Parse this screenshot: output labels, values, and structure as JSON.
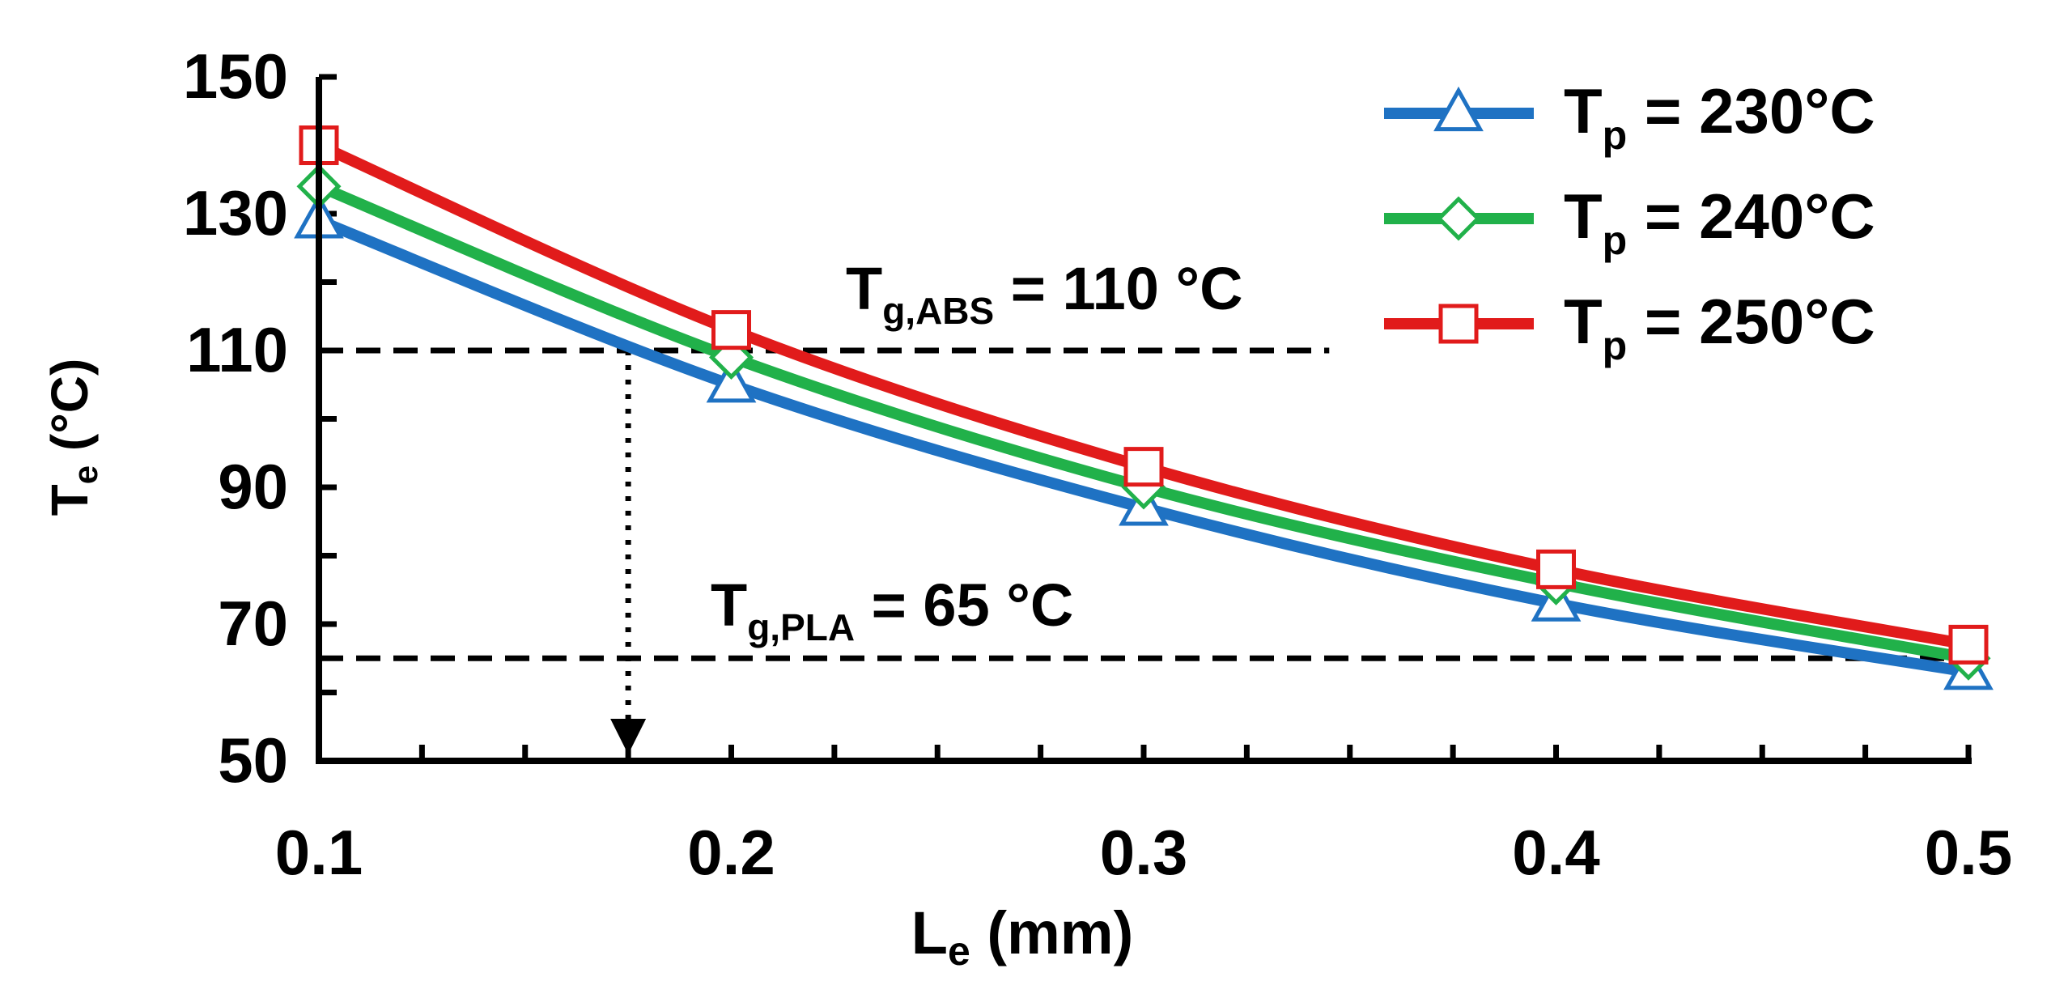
{
  "chart_data": {
    "type": "line",
    "title": "",
    "xlabel": "L",
    "xlabel_sub": "e",
    "xlabel_unit": " (mm)",
    "ylabel": "T",
    "ylabel_sub": "e",
    "ylabel_unit": " (°C)",
    "xlim": [
      0.1,
      0.5
    ],
    "ylim": [
      50,
      150
    ],
    "xticks": [
      0.1,
      0.2,
      0.3,
      0.4,
      0.5
    ],
    "xtick_labels": [
      "0.1",
      "0.2",
      "0.3",
      "0.4",
      "0.5"
    ],
    "yticks": [
      50,
      70,
      90,
      110,
      130,
      150
    ],
    "ytick_labels": [
      "50",
      "70",
      "90",
      "110",
      "130",
      "150"
    ],
    "x": [
      0.1,
      0.2,
      0.3,
      0.4,
      0.5
    ],
    "series": [
      {
        "name": "T_p = 230°C",
        "legend_main": "T",
        "legend_sub": "p",
        "legend_rest": " = 230°C",
        "color": "#1f72c3",
        "marker": "triangle",
        "values": [
          129,
          105,
          87,
          73,
          63
        ]
      },
      {
        "name": "T_p = 240°C",
        "legend_main": "T",
        "legend_sub": "p",
        "legend_rest": " = 240°C",
        "color": "#21b14a",
        "marker": "diamond",
        "values": [
          134,
          109,
          90,
          76,
          65
        ]
      },
      {
        "name": "T_p = 250°C",
        "legend_main": "T",
        "legend_sub": "p",
        "legend_rest": " = 250°C",
        "color": "#e11b1b",
        "marker": "square",
        "values": [
          140,
          113,
          93,
          78,
          67
        ]
      }
    ],
    "reference_lines": [
      {
        "y": 110,
        "x_start": 0.1,
        "x_end": 0.345,
        "label_main": "T",
        "label_sub": "g,ABS",
        "label_rest": " = 110 °C"
      },
      {
        "y": 65,
        "x_start": 0.1,
        "x_end": 0.5,
        "label_main": "T",
        "label_sub": "g,PLA",
        "label_rest": " = 65 °C"
      }
    ],
    "arrow": {
      "x": 0.175,
      "y_from": 110,
      "y_to": 50
    },
    "legend_position": "top-right"
  }
}
